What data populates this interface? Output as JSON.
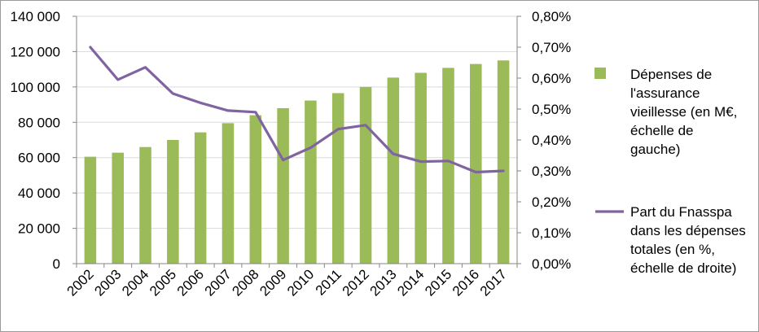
{
  "chart_data": {
    "type": "bar",
    "categories": [
      "2002",
      "2003",
      "2004",
      "2005",
      "2006",
      "2007",
      "2008",
      "2009",
      "2010",
      "2011",
      "2012",
      "2013",
      "2014",
      "2015",
      "2016",
      "2017"
    ],
    "series": [
      {
        "name": "Dépenses de l'assurance vieillesse (en M€, échelle de gauche)",
        "type": "bar",
        "axis": "left",
        "values": [
          60500,
          62800,
          66000,
          70000,
          74300,
          79500,
          84000,
          88000,
          92300,
          96500,
          100000,
          105300,
          108000,
          110800,
          113000,
          115000
        ]
      },
      {
        "name": "Part du Fnasspa dans les dépenses totales (en %, échelle de droite)",
        "type": "line",
        "axis": "right",
        "values": [
          0.7,
          0.595,
          0.635,
          0.55,
          0.52,
          0.495,
          0.49,
          0.335,
          0.375,
          0.435,
          0.448,
          0.355,
          0.33,
          0.332,
          0.296,
          0.3
        ]
      }
    ],
    "y_left": {
      "ylim": [
        0,
        140000
      ],
      "ticks": [
        "0",
        "20 000",
        "40 000",
        "60 000",
        "80 000",
        "100 000",
        "120 000",
        "140 000"
      ]
    },
    "y_right": {
      "ylim": [
        0,
        0.8
      ],
      "ticks": [
        "0,00%",
        "0,10%",
        "0,20%",
        "0,30%",
        "0,40%",
        "0,50%",
        "0,60%",
        "0,70%",
        "0,80%"
      ]
    },
    "legend": {
      "position": "right",
      "bar_lines": [
        "Dépenses de",
        "l'assurance",
        "vieillesse (en M€,",
        "échelle de",
        "gauche)"
      ],
      "line_lines": [
        "Part du Fnasspa",
        "dans les dépenses",
        "totales (en %,",
        "échelle de droite)"
      ]
    },
    "grid": "horizontal",
    "colors": {
      "bar": "#9bbb59",
      "line": "#8064a2",
      "grid": "#d9d9d9",
      "axis": "#868686"
    }
  }
}
